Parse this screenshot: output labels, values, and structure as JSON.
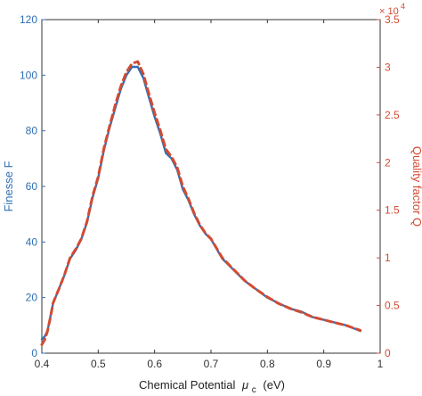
{
  "chart_data": {
    "type": "line",
    "title": "",
    "xlabel": "Chemical Potential",
    "xlabel_symbol": "μ",
    "xlabel_subscript": "c",
    "xlabel_unit": "(eV)",
    "ylabel_left": "Finesse F",
    "ylabel_right": "Quality factor Q",
    "right_axis_exponent_base": "× 10",
    "right_axis_exponent_power": "4",
    "xlim": [
      0.4,
      1.0
    ],
    "ylim_left": [
      0,
      120
    ],
    "ylim_right": [
      0,
      3.5
    ],
    "x_ticks": [
      "0.4",
      "0.5",
      "0.6",
      "0.7",
      "0.8",
      "0.9",
      "1"
    ],
    "y_left_ticks": [
      "0",
      "20",
      "40",
      "60",
      "80",
      "100",
      "120"
    ],
    "y_right_ticks": [
      "0",
      "0.5",
      "1",
      "1.5",
      "2",
      "2.5",
      "3",
      "3.5"
    ],
    "grid": false,
    "colors": {
      "finesse": "#2f6fb3",
      "quality": "#d24b32",
      "axis": "#333333"
    },
    "series": [
      {
        "axis": "left",
        "style": "solid",
        "x": [
          0.4,
          0.405,
          0.41,
          0.415,
          0.42,
          0.43,
          0.44,
          0.45,
          0.46,
          0.47,
          0.48,
          0.49,
          0.5,
          0.51,
          0.52,
          0.53,
          0.54,
          0.55,
          0.56,
          0.57,
          0.58,
          0.59,
          0.6,
          0.61,
          0.62,
          0.63,
          0.64,
          0.65,
          0.66,
          0.67,
          0.68,
          0.69,
          0.7,
          0.72,
          0.74,
          0.76,
          0.78,
          0.8,
          0.82,
          0.84,
          0.86,
          0.88,
          0.9,
          0.92,
          0.94,
          0.965
        ],
        "values": [
          5,
          6,
          8,
          13,
          18,
          23,
          28,
          34,
          37,
          41,
          47,
          56,
          63,
          73,
          81,
          88,
          95,
          100,
          103,
          103,
          99,
          92,
          85,
          79,
          72,
          70,
          66,
          59,
          55,
          50,
          46,
          43,
          41,
          34,
          30,
          26,
          23,
          20,
          18,
          16,
          15,
          13,
          12,
          11,
          10,
          8
        ]
      },
      {
        "axis": "right",
        "style": "dashed",
        "x": [
          0.4,
          0.405,
          0.41,
          0.415,
          0.42,
          0.43,
          0.44,
          0.45,
          0.46,
          0.47,
          0.48,
          0.49,
          0.5,
          0.51,
          0.52,
          0.53,
          0.54,
          0.55,
          0.56,
          0.57,
          0.58,
          0.59,
          0.6,
          0.61,
          0.62,
          0.63,
          0.64,
          0.65,
          0.66,
          0.67,
          0.68,
          0.69,
          0.7,
          0.72,
          0.74,
          0.76,
          0.78,
          0.8,
          0.82,
          0.84,
          0.86,
          0.88,
          0.9,
          0.92,
          0.94,
          0.965
        ],
        "values": [
          0.09,
          0.14,
          0.23,
          0.37,
          0.53,
          0.67,
          0.82,
          1.0,
          1.09,
          1.2,
          1.38,
          1.65,
          1.85,
          2.15,
          2.38,
          2.6,
          2.8,
          2.95,
          3.04,
          3.06,
          2.93,
          2.72,
          2.52,
          2.34,
          2.14,
          2.06,
          1.95,
          1.75,
          1.62,
          1.47,
          1.35,
          1.26,
          1.2,
          1.0,
          0.88,
          0.76,
          0.67,
          0.59,
          0.52,
          0.47,
          0.43,
          0.38,
          0.35,
          0.32,
          0.29,
          0.24
        ]
      }
    ]
  }
}
